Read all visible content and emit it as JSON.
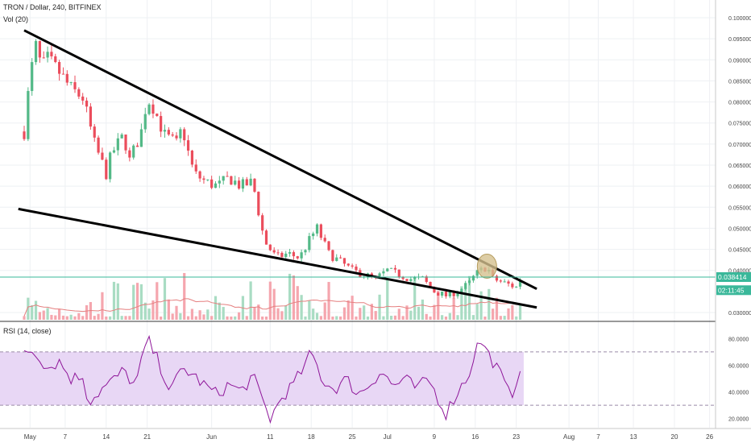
{
  "header": {
    "symbol_line": "TRON / Dollar, 240, BITFINEX",
    "volume_label": "Vol (20)",
    "rsi_label": "RSI (14, close)"
  },
  "price_axis": {
    "ticks": [
      "0.100000",
      "0.095000",
      "0.090000",
      "0.085000",
      "0.080000",
      "0.075000",
      "0.070000",
      "0.065000",
      "0.060000",
      "0.055000",
      "0.050000",
      "0.045000",
      "0.040000",
      "0.030000"
    ],
    "tick_values": [
      0.1,
      0.095,
      0.09,
      0.085,
      0.08,
      0.075,
      0.07,
      0.065,
      0.06,
      0.055,
      0.05,
      0.045,
      0.04,
      0.03
    ],
    "last_price_label": "0.038414",
    "last_price": 0.038414,
    "countdown_label": "02:11:45",
    "countdown_level": 0.0353
  },
  "rsi_axis": {
    "ticks": [
      "80.0000",
      "60.0000",
      "40.0000",
      "20.0000"
    ],
    "tick_values": [
      80,
      60,
      40,
      20
    ],
    "overbought": 70,
    "oversold": 30
  },
  "time_axis": {
    "ticks": [
      "May",
      "7",
      "14",
      "21",
      "Jun",
      "11",
      "18",
      "25",
      "Jul",
      "9",
      "16",
      "23",
      "Aug",
      "7",
      "13",
      "20",
      "26"
    ],
    "tick_days": [
      1,
      7,
      14,
      21,
      32,
      42,
      49,
      56,
      62,
      70,
      77,
      84,
      93,
      98,
      104,
      111,
      117
    ]
  },
  "colors": {
    "up": "#53b987",
    "down": "#eb4d5c",
    "volume_up": "#a9dcc3",
    "volume_down": "#f5a6ae",
    "trendline": "#000000",
    "rsi_line": "#8e1599",
    "rsi_band": "#e8d7f5",
    "last_price": "#3ab89a",
    "highlight_circle": "#d4c08e"
  },
  "chart_data": [
    {
      "type": "candlestick",
      "title": "TRON / Dollar, 240, BITFINEX",
      "x_unit": "days since Apr 30 (approx.)",
      "ylim": [
        0.028,
        0.1
      ],
      "close_path": [
        [
          0,
          0.073
        ],
        [
          1,
          0.086
        ],
        [
          2,
          0.093
        ],
        [
          3,
          0.088
        ],
        [
          4,
          0.09
        ],
        [
          6,
          0.087
        ],
        [
          8,
          0.083
        ],
        [
          10,
          0.081
        ],
        [
          12,
          0.07
        ],
        [
          14,
          0.063
        ],
        [
          15,
          0.068
        ],
        [
          17,
          0.072
        ],
        [
          18,
          0.066
        ],
        [
          20,
          0.073
        ],
        [
          21,
          0.081
        ],
        [
          22,
          0.079
        ],
        [
          24,
          0.072
        ],
        [
          26,
          0.07
        ],
        [
          27,
          0.074
        ],
        [
          28,
          0.068
        ],
        [
          29,
          0.063
        ],
        [
          31,
          0.061
        ],
        [
          33,
          0.06
        ],
        [
          35,
          0.062
        ],
        [
          37,
          0.06
        ],
        [
          39,
          0.061
        ],
        [
          40,
          0.054
        ],
        [
          41,
          0.047
        ],
        [
          42,
          0.045
        ],
        [
          43,
          0.043
        ],
        [
          45,
          0.044
        ],
        [
          47,
          0.043
        ],
        [
          49,
          0.048
        ],
        [
          50,
          0.05
        ],
        [
          52,
          0.044
        ],
        [
          54,
          0.042
        ],
        [
          56,
          0.04
        ],
        [
          58,
          0.039
        ],
        [
          60,
          0.038
        ],
        [
          62,
          0.04
        ],
        [
          64,
          0.039
        ],
        [
          66,
          0.038
        ],
        [
          68,
          0.038
        ],
        [
          70,
          0.035
        ],
        [
          72,
          0.034
        ],
        [
          74,
          0.035
        ],
        [
          76,
          0.037
        ],
        [
          77,
          0.039
        ],
        [
          78,
          0.04
        ],
        [
          79,
          0.041
        ],
        [
          80,
          0.038
        ],
        [
          82,
          0.037
        ],
        [
          84,
          0.036
        ],
        [
          85,
          0.039
        ]
      ],
      "trendlines": [
        {
          "from": [
            0,
            0.097
          ],
          "to": [
            87.5,
            0.0356
          ]
        },
        {
          "from": [
            -1,
            0.0546
          ],
          "to": [
            87.5,
            0.0312
          ]
        }
      ],
      "highlight": {
        "day": 79,
        "price": 0.041
      }
    },
    {
      "type": "line",
      "title": "RSI (14, close)",
      "ylim": [
        15,
        85
      ],
      "reference_lines": [
        70,
        30
      ],
      "values_path": [
        [
          0,
          72
        ],
        [
          2,
          70
        ],
        [
          4,
          58
        ],
        [
          6,
          63
        ],
        [
          8,
          50
        ],
        [
          10,
          52
        ],
        [
          11,
          32
        ],
        [
          13,
          41
        ],
        [
          15,
          48
        ],
        [
          17,
          56
        ],
        [
          19,
          44
        ],
        [
          21,
          80
        ],
        [
          23,
          62
        ],
        [
          25,
          40
        ],
        [
          27,
          58
        ],
        [
          29,
          52
        ],
        [
          31,
          44
        ],
        [
          33,
          38
        ],
        [
          35,
          46
        ],
        [
          37,
          40
        ],
        [
          39,
          52
        ],
        [
          41,
          30
        ],
        [
          42,
          20
        ],
        [
          44,
          36
        ],
        [
          46,
          46
        ],
        [
          48,
          60
        ],
        [
          49,
          70
        ],
        [
          51,
          48
        ],
        [
          53,
          42
        ],
        [
          55,
          50
        ],
        [
          57,
          38
        ],
        [
          59,
          46
        ],
        [
          61,
          56
        ],
        [
          63,
          44
        ],
        [
          65,
          50
        ],
        [
          67,
          42
        ],
        [
          69,
          50
        ],
        [
          71,
          32
        ],
        [
          72,
          24
        ],
        [
          74,
          40
        ],
        [
          76,
          54
        ],
        [
          77,
          72
        ],
        [
          78,
          78
        ],
        [
          79,
          70
        ],
        [
          81,
          56
        ],
        [
          83,
          36
        ],
        [
          84,
          48
        ],
        [
          85,
          66
        ]
      ]
    },
    {
      "type": "bar",
      "title": "Vol (20)",
      "scale": "relative"
    }
  ]
}
